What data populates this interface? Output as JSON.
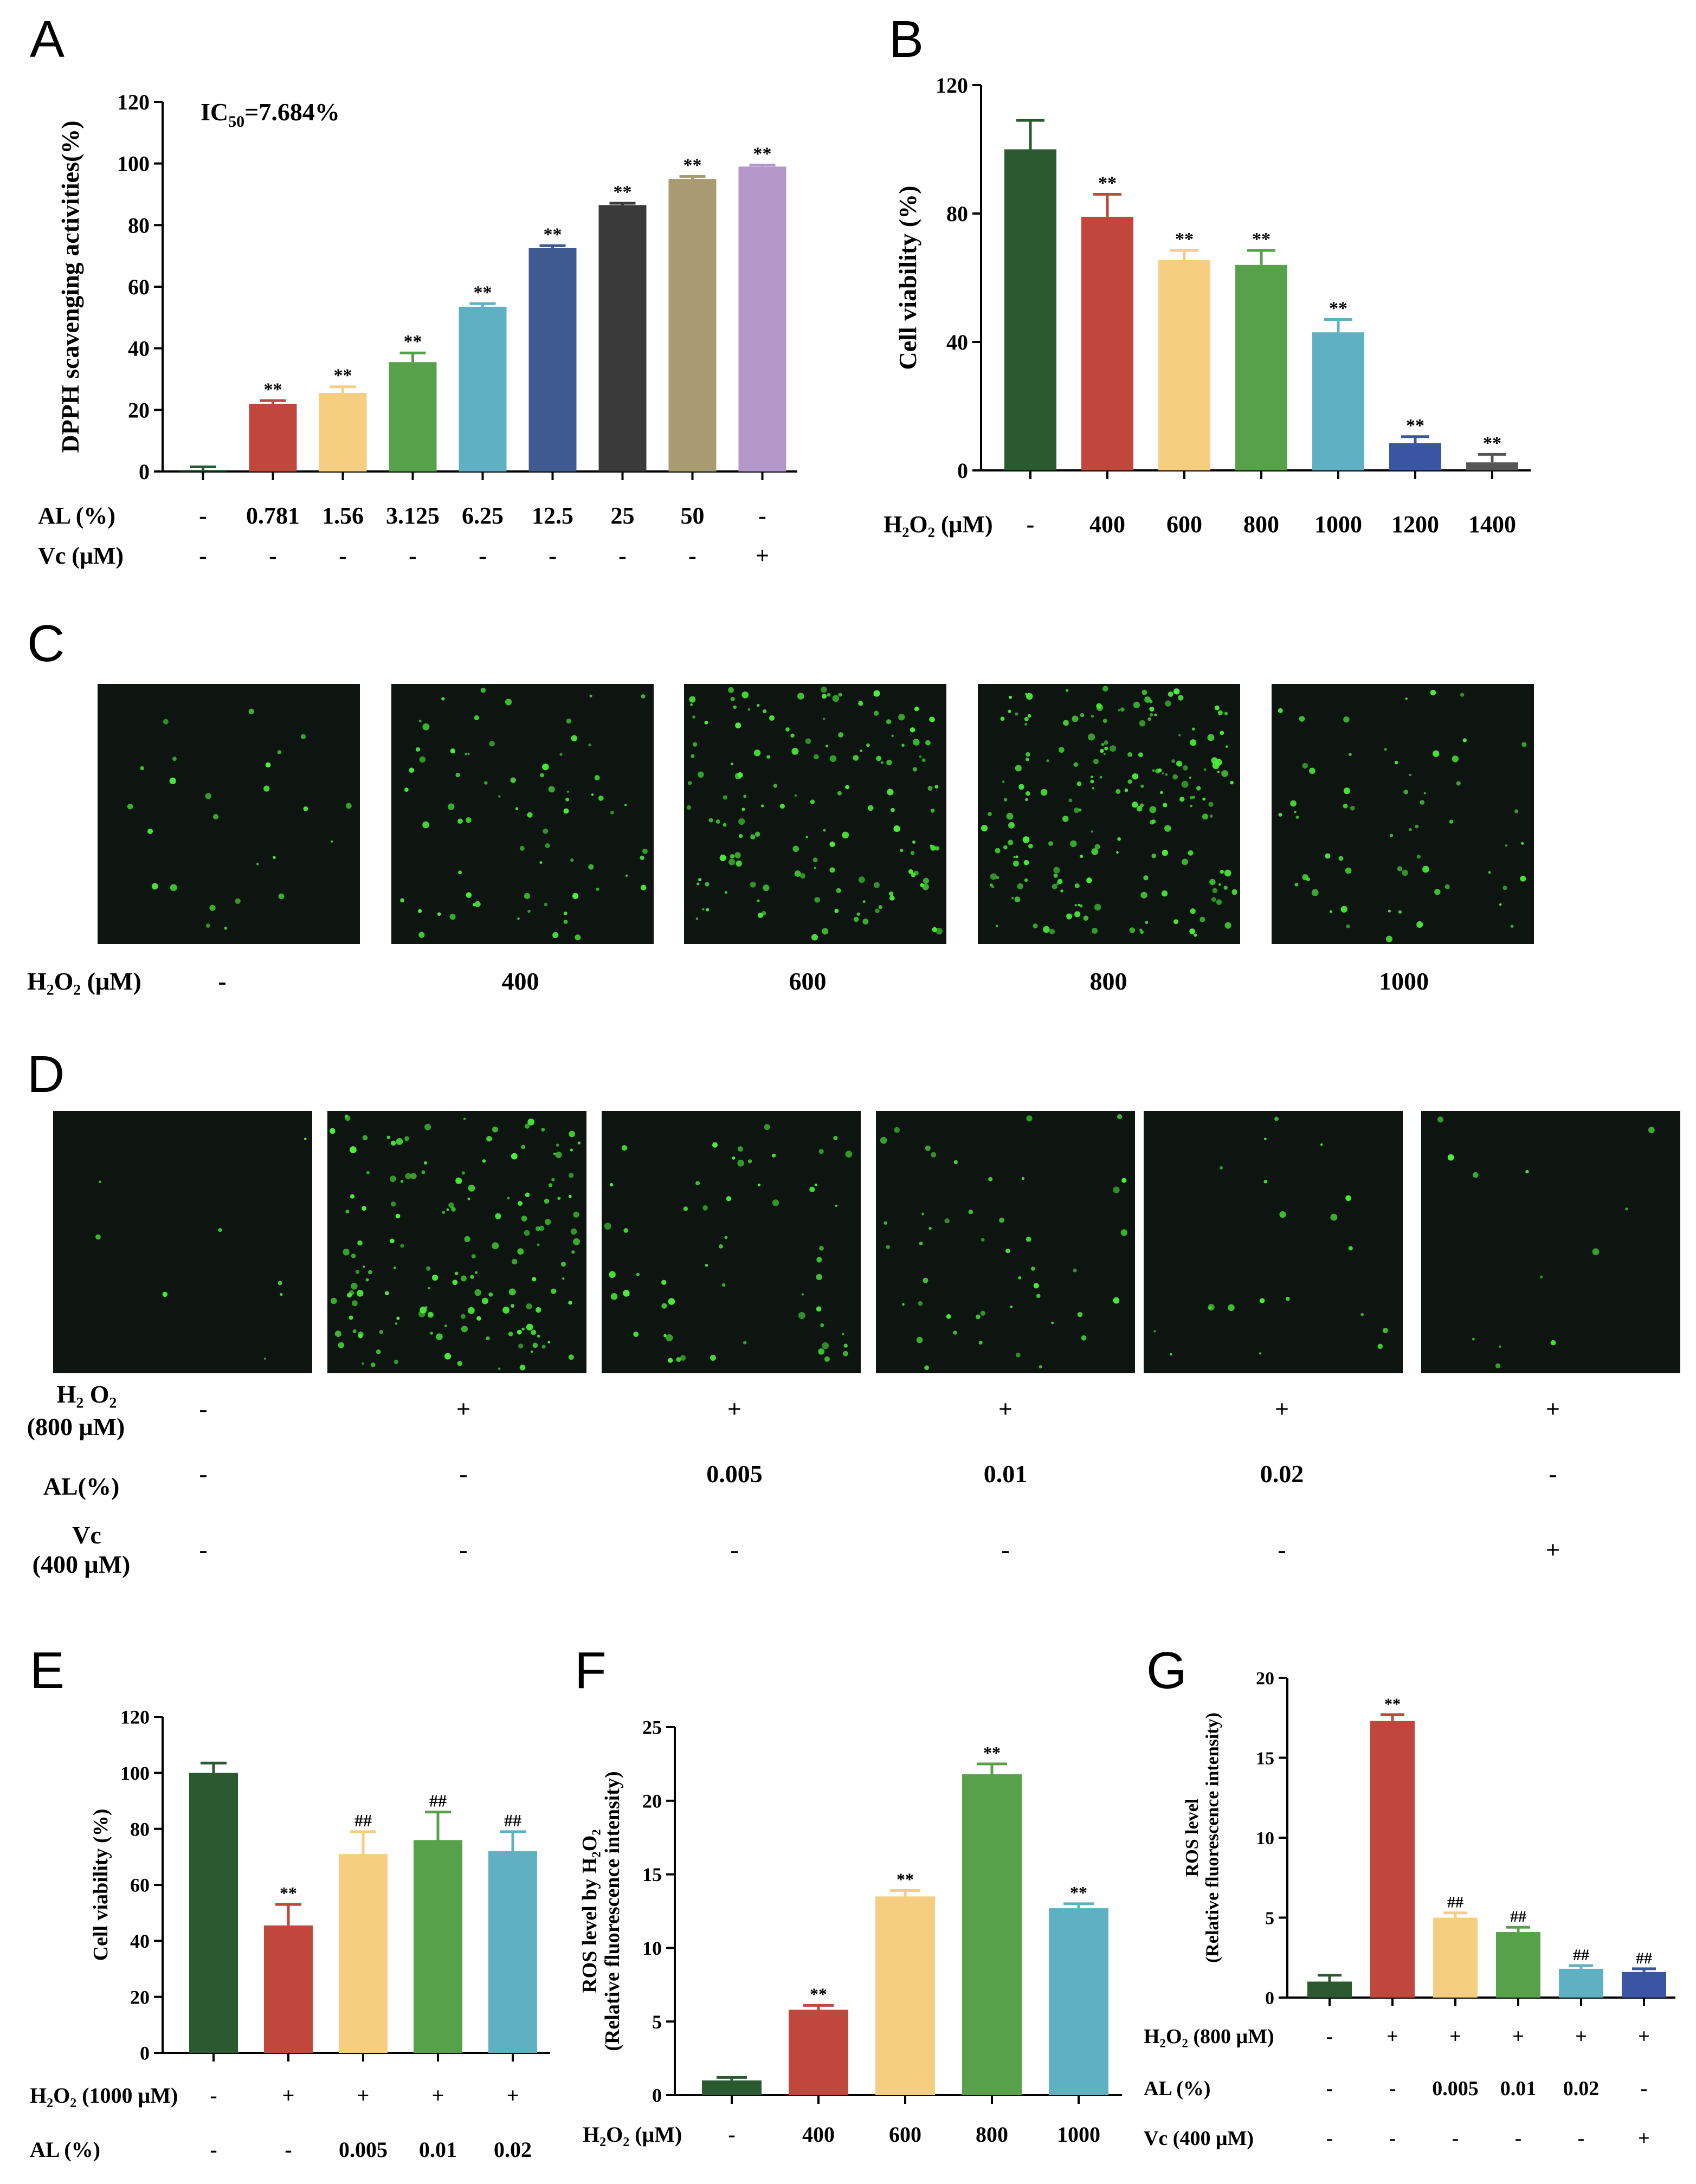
{
  "colors": {
    "darkgreen": "#2b5a30",
    "red": "#c0473b",
    "yellow": "#f5cf7f",
    "green": "#56a14a",
    "teal": "#5fb0c3",
    "navy": "#3f5a91",
    "charcoal": "#3a3a3a",
    "khaki": "#a89b72",
    "lavender": "#b497c9",
    "darkgray": "#555555",
    "blue": "#3b55a5",
    "dot": "#4cf03c"
  },
  "panelA": {
    "letter": "A",
    "ic50": {
      "main": "IC",
      "sub": "50",
      "rest": "=7.684%"
    },
    "chart_data": {
      "type": "bar",
      "title": "",
      "ylabel": "DPPH scavenging activities(%)",
      "ylim": [
        0,
        120
      ],
      "yticks": [
        "0",
        "20",
        "40",
        "60",
        "80",
        "100",
        "120"
      ],
      "values": [
        0.5,
        22,
        25.5,
        35.5,
        53.5,
        72.5,
        86.5,
        95,
        99
      ],
      "errors": [
        1,
        1,
        2,
        3,
        1,
        0.8,
        0.6,
        0.8,
        0.5
      ],
      "colors": [
        "darkgreen",
        "red",
        "yellow",
        "green",
        "teal",
        "navy",
        "charcoal",
        "khaki",
        "lavender"
      ],
      "sig": [
        "",
        "**",
        "**",
        "**",
        "**",
        "**",
        "**",
        "**",
        "**"
      ],
      "treatments": [
        {
          "label": "AL (%)",
          "values": [
            "-",
            "0.781",
            "1.56",
            "3.125",
            "6.25",
            "12.5",
            "25",
            "50",
            "-"
          ]
        },
        {
          "label": "Vc (μM)",
          "values": [
            "-",
            "-",
            "-",
            "-",
            "-",
            "-",
            "-",
            "-",
            "+"
          ]
        }
      ]
    }
  },
  "panelB": {
    "letter": "B",
    "chart_data": {
      "type": "bar",
      "ylabel": "Cell viability (%)",
      "ylim": [
        0,
        120
      ],
      "yticks": [
        "0",
        "40",
        "80",
        "120"
      ],
      "values": [
        100,
        79,
        65.5,
        64,
        43,
        8.5,
        2.5
      ],
      "errors": [
        9,
        7,
        3,
        4.5,
        4,
        2,
        2.5
      ],
      "colors": [
        "darkgreen",
        "red",
        "yellow",
        "green",
        "teal",
        "blue",
        "darkgray"
      ],
      "sig": [
        "",
        "**",
        "**",
        "**",
        "**",
        "**",
        "**"
      ],
      "treatments": [
        {
          "label": "H₂O₂ (μM)",
          "values": [
            "-",
            "400",
            "600",
            "800",
            "1000",
            "1200",
            "1400"
          ]
        }
      ]
    }
  },
  "panelC": {
    "letter": "C",
    "row_label": "H₂O₂ (μM)",
    "values": [
      "-",
      "400",
      "600",
      "800",
      "1000"
    ]
  },
  "panelD": {
    "letter": "D",
    "rows": [
      {
        "label": [
          "H₂ O₂",
          "(800 μM)"
        ],
        "values": [
          "-",
          "+",
          "+",
          "+",
          "+",
          "+"
        ]
      },
      {
        "label": [
          "AL(%)"
        ],
        "values": [
          "-",
          "-",
          "0.005",
          "0.01",
          "0.02",
          "-"
        ]
      },
      {
        "label": [
          "Vc",
          "(400 μM)"
        ],
        "values": [
          "-",
          "-",
          "-",
          "-",
          "-",
          "+"
        ]
      }
    ]
  },
  "panelE": {
    "letter": "E",
    "chart_data": {
      "type": "bar",
      "ylabel": "Cell viability (%)",
      "ylim": [
        0,
        120
      ],
      "yticks": [
        "0",
        "20",
        "40",
        "60",
        "80",
        "100",
        "120"
      ],
      "values": [
        100,
        45.5,
        71,
        76,
        72
      ],
      "errors": [
        3.5,
        7.5,
        8,
        10,
        7
      ],
      "colors": [
        "darkgreen",
        "red",
        "yellow",
        "green",
        "teal"
      ],
      "sig": [
        "",
        "**",
        "##",
        "##",
        "##"
      ],
      "treatments": [
        {
          "label": "H₂O₂ (1000 μM)",
          "values": [
            "-",
            "+",
            "+",
            "+",
            "+"
          ]
        },
        {
          "label": "AL (%)",
          "values": [
            "-",
            "-",
            "0.005",
            "0.01",
            "0.02"
          ]
        }
      ]
    }
  },
  "panelF": {
    "letter": "F",
    "chart_data": {
      "type": "bar",
      "ylabel": [
        "ROS level by H₂O₂",
        "(Relative fluorescence intensity)"
      ],
      "ylim": [
        0,
        25
      ],
      "yticks": [
        "0",
        "5",
        "10",
        "15",
        "20",
        "25"
      ],
      "values": [
        1,
        5.8,
        13.5,
        21.8,
        12.7
      ],
      "errors": [
        0.2,
        0.3,
        0.4,
        0.7,
        0.3
      ],
      "colors": [
        "darkgreen",
        "red",
        "yellow",
        "green",
        "teal"
      ],
      "sig": [
        "",
        "**",
        "**",
        "**",
        "**"
      ],
      "treatments": [
        {
          "label": "H₂O₂ (μM)",
          "values": [
            "-",
            "400",
            "600",
            "800",
            "1000"
          ]
        }
      ]
    }
  },
  "panelG": {
    "letter": "G",
    "chart_data": {
      "type": "bar",
      "ylabel": [
        "ROS level",
        "(Relative fluorescence intensity)"
      ],
      "ylim": [
        0,
        20
      ],
      "yticks": [
        "0",
        "5",
        "10",
        "15",
        "20"
      ],
      "values": [
        1,
        17.3,
        5,
        4.1,
        1.8,
        1.6
      ],
      "errors": [
        0.4,
        0.4,
        0.3,
        0.3,
        0.2,
        0.2
      ],
      "colors": [
        "darkgreen",
        "red",
        "yellow",
        "green",
        "teal",
        "blue"
      ],
      "sig": [
        "",
        "**",
        "##",
        "##",
        "##",
        "##"
      ],
      "treatments": [
        {
          "label": "H₂O₂ (800 μM)",
          "values": [
            "-",
            "+",
            "+",
            "+",
            "+",
            "+"
          ]
        },
        {
          "label": "AL (%)",
          "values": [
            "-",
            "-",
            "0.005",
            "0.01",
            "0.02",
            "-"
          ]
        },
        {
          "label": "Vc (400 μM)",
          "values": [
            "-",
            "-",
            "-",
            "-",
            "-",
            "+"
          ]
        }
      ]
    }
  }
}
